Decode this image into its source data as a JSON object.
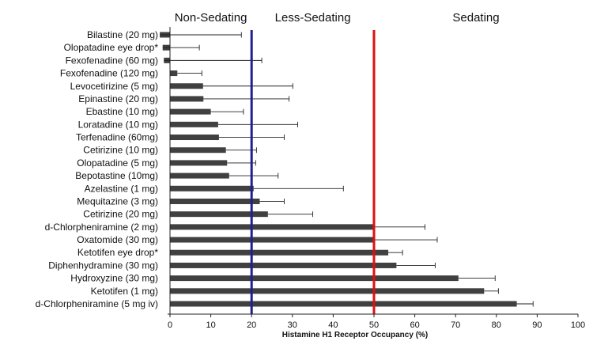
{
  "chart_data": {
    "type": "bar",
    "orientation": "horizontal",
    "xlabel": "Histamine H1 Receptor Occupancy (%)",
    "xlim": [
      0,
      100
    ],
    "xticks": [
      0,
      10,
      20,
      30,
      40,
      50,
      60,
      70,
      80,
      90,
      100
    ],
    "grid": false,
    "bar_color": "#404040",
    "regions": [
      {
        "label": "Non-Sedating",
        "from": 0,
        "to": 20
      },
      {
        "label": "Less-Sedating",
        "from": 20,
        "to": 50
      },
      {
        "label": "Sedating",
        "from": 50,
        "to": 100
      }
    ],
    "thresholds": [
      {
        "value": 20,
        "color": "#1f1f8f"
      },
      {
        "value": 50,
        "color": "#e01010"
      }
    ],
    "categories": [
      "Bilastine (20 mg)",
      "Olopatadine eye drop*",
      "Fexofenadine (60 mg)",
      "Fexofenadine (120 mg)",
      "Levocetirizine (5 mg)",
      "Epinastine (20 mg)",
      "Ebastine (10 mg)",
      "Loratadine (10 mg)",
      "Terfenadine (60mg)",
      "Cetirizine (10 mg)",
      "Olopatadine (5 mg)",
      "Bepotastine (10mg)",
      "Azelastine (1 mg)",
      "Mequitazine (3 mg)",
      "Cetirizine (20 mg)",
      "d-Chlorpheniramine (2 mg)",
      "Oxatomide (30 mg)",
      "Ketotifen eye drop*",
      "Diphenhydramine (30 mg)",
      "Hydroxyzine (30 mg)",
      "Ketotifen (1 mg)",
      "d-Chlorpheniramine (5 mg iv)"
    ],
    "values": [
      -2.5,
      -1.8,
      -1.5,
      1.8,
      8.1,
      8.2,
      10.0,
      11.8,
      12.0,
      13.7,
      14.0,
      14.5,
      20.5,
      22.0,
      24.0,
      50.0,
      50.0,
      53.5,
      55.5,
      70.7,
      77.0,
      85.0
    ],
    "error_plus": [
      20.0,
      9.0,
      24.0,
      6.0,
      22.0,
      21.0,
      8.0,
      19.5,
      16.0,
      7.5,
      7.0,
      12.0,
      22.0,
      6.0,
      11.0,
      12.5,
      15.5,
      3.5,
      9.5,
      9.0,
      3.5,
      4.0
    ]
  }
}
